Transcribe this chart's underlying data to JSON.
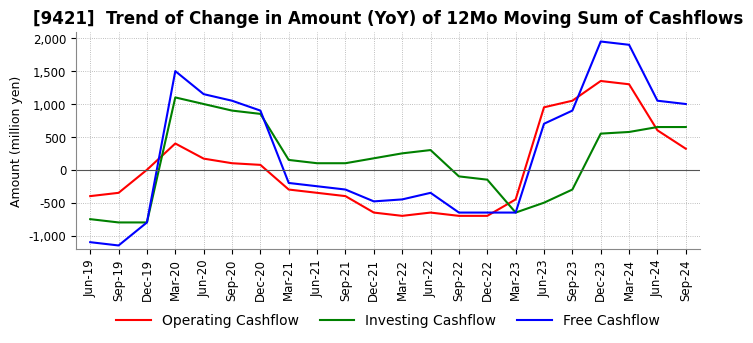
{
  "title": "[9421]  Trend of Change in Amount (YoY) of 12Mo Moving Sum of Cashflows",
  "ylabel": "Amount (million yen)",
  "ylim": [
    -1200,
    2100
  ],
  "yticks": [
    -1000,
    -500,
    0,
    500,
    1000,
    1500,
    2000
  ],
  "x_labels": [
    "Jun-19",
    "Sep-19",
    "Dec-19",
    "Mar-20",
    "Jun-20",
    "Sep-20",
    "Dec-20",
    "Mar-21",
    "Jun-21",
    "Sep-21",
    "Dec-21",
    "Mar-22",
    "Jun-22",
    "Sep-22",
    "Dec-22",
    "Mar-23",
    "Jun-23",
    "Sep-23",
    "Dec-23",
    "Mar-24",
    "Jun-24",
    "Sep-24"
  ],
  "operating": [
    -400,
    -350,
    0,
    400,
    170,
    100,
    75,
    -300,
    -350,
    -400,
    -650,
    -700,
    -650,
    -700,
    -700,
    -450,
    950,
    1050,
    1350,
    1300,
    600,
    320
  ],
  "investing": [
    -750,
    -800,
    -800,
    1100,
    1000,
    900,
    850,
    150,
    100,
    100,
    175,
    250,
    300,
    -100,
    -150,
    -650,
    -500,
    -300,
    550,
    575,
    650,
    650
  ],
  "free": [
    -1100,
    -1150,
    -800,
    1500,
    1150,
    1050,
    900,
    -200,
    -250,
    -300,
    -480,
    -450,
    -350,
    -650,
    -650,
    -650,
    700,
    900,
    1950,
    1900,
    1050,
    1000
  ],
  "colors": {
    "operating": "#ff0000",
    "investing": "#008000",
    "free": "#0000ff"
  },
  "background_color": "#ffffff",
  "grid_color": "#aaaaaa",
  "title_fontsize": 12,
  "label_fontsize": 9,
  "tick_fontsize": 8.5,
  "legend_fontsize": 10
}
